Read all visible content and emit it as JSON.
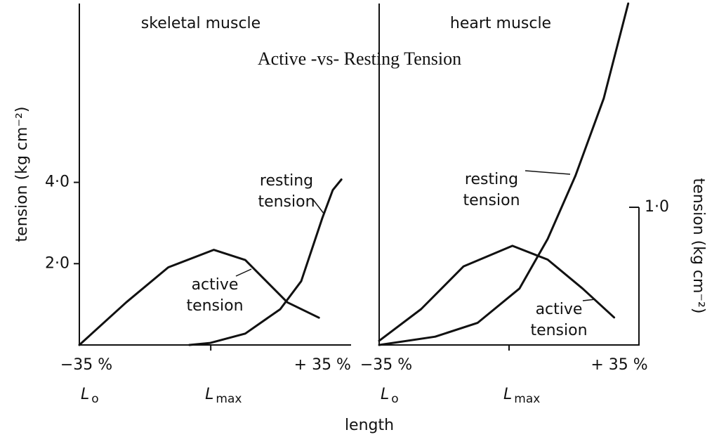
{
  "title": "Active -vs- Resting Tension",
  "x_label": "length",
  "chart_data": [
    {
      "type": "line",
      "title": "skeletal muscle",
      "ylabel": "tension (kg cm⁻²)",
      "xlim": [
        -35,
        37
      ],
      "ylim": [
        0,
        8.4
      ],
      "xticks": [
        {
          "value": -35,
          "label": "−35 %"
        },
        {
          "value": 35,
          "label": "+ 35 %"
        }
      ],
      "yticks": [
        {
          "value": 2,
          "label": "2·0"
        },
        {
          "value": 4,
          "label": "4·0"
        }
      ],
      "length_marks": [
        {
          "value": -35,
          "label": "L",
          "subscript": "o"
        },
        {
          "value": 0,
          "label": "L",
          "subscript": "max"
        }
      ],
      "series": [
        {
          "name": "active tension",
          "color": "#111111",
          "x": [
            -35,
            -22.5,
            -11.3,
            0.8,
            9.2,
            20.4,
            28.8
          ],
          "values": [
            0,
            1.05,
            1.91,
            2.34,
            2.09,
            1.05,
            0.67
          ]
        },
        {
          "name": "resting tension",
          "color": "#111111",
          "x": [
            -5.7,
            -0.1,
            9.2,
            18.5,
            24.1,
            29.7,
            32.5,
            34.8
          ],
          "values": [
            0,
            0.05,
            0.28,
            0.88,
            1.57,
            3.12,
            3.81,
            4.07
          ]
        }
      ]
    },
    {
      "type": "line",
      "title": "heart muscle",
      "y2label": "tension (kg cm⁻²)",
      "xlim": [
        -35,
        35
      ],
      "y2lim": [
        0,
        2.48
      ],
      "xticks": [
        {
          "value": -35,
          "label": "−35 %"
        },
        {
          "value": 35,
          "label": "+ 35 %"
        }
      ],
      "y2ticks": [
        {
          "value": 1,
          "label": "1·0"
        }
      ],
      "length_marks": [
        {
          "value": -35,
          "label": "L",
          "subscript": "o"
        },
        {
          "value": 0,
          "label": "L",
          "subscript": "max"
        }
      ],
      "series": [
        {
          "name": "active tension",
          "color": "#111111",
          "axis": "y2",
          "x": [
            -35,
            -23.7,
            -12.3,
            0.9,
            10.4,
            19.8,
            28.3
          ],
          "values": [
            0.03,
            0.26,
            0.57,
            0.72,
            0.62,
            0.41,
            0.2
          ]
        },
        {
          "name": "resting tension",
          "color": "#111111",
          "axis": "y2",
          "x": [
            -35,
            -19.9,
            -8.5,
            2.8,
            10.4,
            17.9,
            25.5,
            32.1
          ],
          "values": [
            0,
            0.06,
            0.16,
            0.41,
            0.77,
            1.23,
            1.79,
            2.48
          ]
        }
      ]
    }
  ]
}
